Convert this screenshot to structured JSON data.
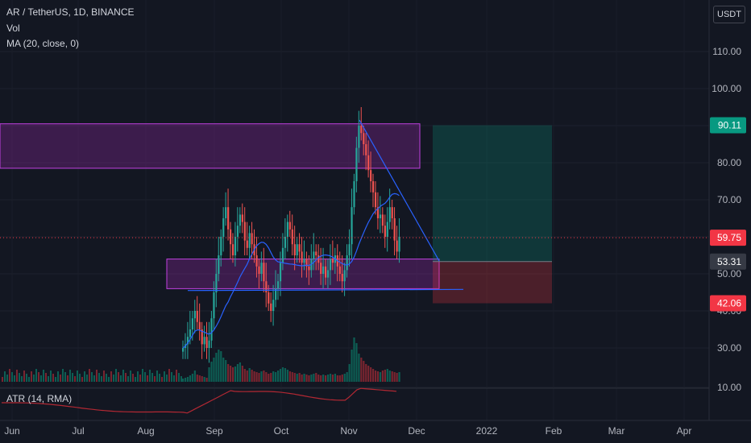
{
  "legend": {
    "symbol": "AR / TetherUS, 1D, BINANCE",
    "vol": "Vol",
    "ma": "MA (20, close, 0)",
    "atr": "ATR (14, RMA)"
  },
  "currency_button": "USDT",
  "price_tags": [
    {
      "label": "90.11",
      "value": 90.11,
      "color": "#089981"
    },
    {
      "label": "59.75",
      "value": 59.75,
      "color": "#f23645"
    },
    {
      "label": "53.31",
      "value": 53.31,
      "color": "#363a45"
    },
    {
      "label": "42.06",
      "value": 42.06,
      "color": "#f23645"
    }
  ],
  "chart_data": {
    "type": "candlestick",
    "x_ticks": [
      "Jun",
      "Jul",
      "Aug",
      "Sep",
      "Oct",
      "Nov",
      "Dec",
      "2022",
      "Feb",
      "Mar",
      "Apr"
    ],
    "y_ticks": [
      "110.00",
      "100.00",
      "90.00",
      "80.00",
      "70.00",
      "60.00",
      "50.00",
      "40.00",
      "30.00",
      "10.00"
    ],
    "y_tick_values": [
      110,
      100,
      90,
      80,
      70,
      60,
      50,
      40,
      30,
      10
    ],
    "ylim": [
      10,
      120
    ],
    "current_price": 59.75,
    "close": [
      30,
      31,
      33,
      35,
      38,
      40,
      37,
      35,
      31,
      33,
      30,
      32,
      38,
      45,
      50,
      55,
      60,
      65,
      68,
      62,
      58,
      55,
      60,
      63,
      66,
      64,
      59,
      57,
      61,
      58,
      55,
      52,
      50,
      53,
      48,
      45,
      42,
      40,
      43,
      46,
      48,
      53,
      57,
      60,
      64,
      62,
      58,
      55,
      58,
      56,
      53,
      54,
      52,
      51,
      54,
      56,
      55,
      53,
      50,
      52,
      49,
      51,
      54,
      53,
      55,
      52,
      50,
      48,
      51,
      55,
      58,
      68,
      75,
      84,
      90,
      88,
      85,
      82,
      78,
      75,
      72,
      68,
      65,
      66,
      63,
      60,
      64,
      68,
      65,
      59,
      56,
      60
    ],
    "volume_pct": [
      4,
      5,
      6,
      8,
      10,
      14,
      9,
      8,
      7,
      6,
      5,
      18,
      25,
      30,
      36,
      40,
      38,
      30,
      27,
      22,
      20,
      18,
      19,
      22,
      24,
      20,
      16,
      14,
      17,
      15,
      13,
      12,
      11,
      13,
      14,
      12,
      10,
      11,
      13,
      12,
      14,
      16,
      18,
      17,
      15,
      13,
      12,
      11,
      10,
      11,
      9,
      10,
      9,
      8,
      9,
      10,
      11,
      9,
      8,
      9,
      8,
      9,
      10,
      9,
      10,
      8,
      8,
      9,
      10,
      12,
      22,
      40,
      55,
      48,
      35,
      30,
      26,
      22,
      20,
      18,
      16,
      14,
      13,
      12,
      14,
      15,
      16,
      14,
      13,
      12,
      11,
      12
    ],
    "zones": [
      {
        "name": "resistance-zone",
        "from": 78.5,
        "to": 90.5,
        "color": "#9c27b0"
      },
      {
        "name": "support-zone",
        "from": 46,
        "to": 54,
        "color": "#9c27b0"
      },
      {
        "name": "target-zone",
        "from": 53.31,
        "to": 90.11,
        "color": "#089981"
      },
      {
        "name": "stop-zone",
        "from": 42.06,
        "to": 53.31,
        "color": "#f23645"
      }
    ],
    "trendlines": [
      {
        "name": "descending-trendline",
        "from_price": 91.5,
        "to_price": 53.5
      },
      {
        "name": "support-line",
        "from_price": 45.5,
        "to_price": 45.8
      }
    ]
  }
}
